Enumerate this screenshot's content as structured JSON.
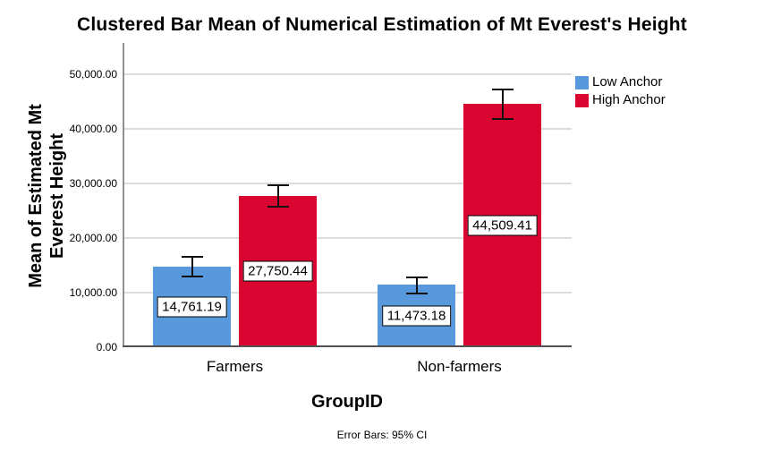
{
  "title": "Clustered Bar Mean of Numerical Estimation of Mt Everest's Height",
  "footer_note": "Error Bars: 95% CI",
  "y_axis_title_lines": [
    "Mean of Estimated Mt",
    "Everest Height"
  ],
  "chart_data": {
    "type": "bar",
    "title": "Clustered Bar Mean of Numerical Estimation of Mt Everest's Height",
    "xlabel": "GroupID",
    "ylabel": "Mean of Estimated Mt Everest Height",
    "categories": [
      "Farmers",
      "Non-farmers"
    ],
    "series": [
      {
        "name": "Low Anchor",
        "color": "#5898DD",
        "values": [
          14761.19,
          11473.18
        ],
        "value_labels": [
          "14,761.19",
          "11,473.18"
        ],
        "ci_upper": [
          16600,
          12800
        ],
        "ci_lower": [
          12900,
          9850
        ]
      },
      {
        "name": "High Anchor",
        "color": "#D9042F",
        "values": [
          27750.44,
          44509.41
        ],
        "value_labels": [
          "27,750.44",
          "44,509.41"
        ],
        "ci_upper": [
          29700,
          47200
        ],
        "ci_lower": [
          25750,
          41800
        ]
      }
    ],
    "ylim": [
      0,
      55700
    ],
    "yticks": [
      0,
      10000,
      20000,
      30000,
      40000,
      50000
    ],
    "ytick_labels": [
      "0.00",
      "10,000.00",
      "20,000.00",
      "30,000.00",
      "40,000.00",
      "50,000.00"
    ],
    "grid": "horizontal",
    "legend_position": "top-right-outside",
    "error_note": "Error Bars: 95% CI"
  }
}
